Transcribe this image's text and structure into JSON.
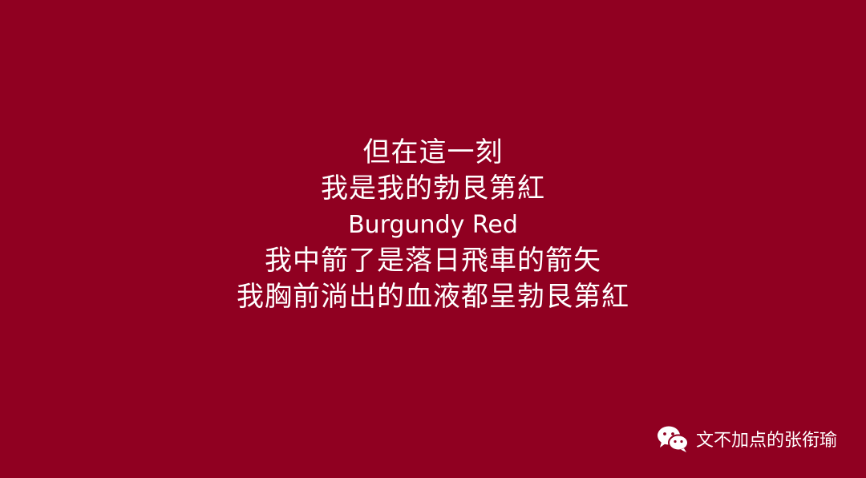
{
  "background_color": "#900021",
  "text_color": "#ffffff",
  "poem": {
    "lines": [
      "但在這一刻",
      "我是我的勃艮第紅",
      "Burgundy Red",
      "我中箭了是落日飛車的箭矢",
      "我胸前淌出的血液都呈勃艮第紅"
    ]
  },
  "watermark": {
    "icon": "wechat-icon",
    "text": "文不加点的张衔瑜"
  }
}
